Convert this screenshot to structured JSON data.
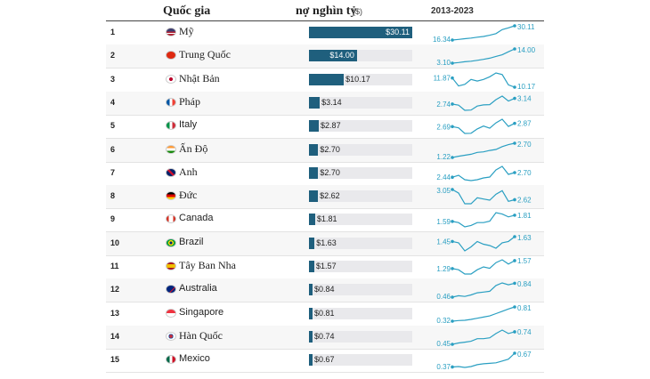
{
  "header": {
    "country_label": "Quốc gia",
    "debt_label": "nợ nghìn tỷ",
    "unit_label": "($)",
    "range_label": "2013-2023"
  },
  "chart_data": {
    "type": "bar",
    "max_value": 30.11,
    "rows": [
      {
        "rank": "1",
        "country": "Mỹ",
        "flag": "us",
        "value": 30.11,
        "label": "$30.11",
        "start": "16.34",
        "end": "30.11",
        "trend": [
          16.34,
          16.9,
          17.6,
          18.2,
          19.1,
          19.8,
          21.0,
          22.5,
          26.4,
          28.1,
          30.11
        ]
      },
      {
        "rank": "2",
        "country": "Trung Quốc",
        "flag": "cn",
        "value": 14.0,
        "label": "$14.00",
        "start": "3.10",
        "end": "14.00",
        "trend": [
          3.1,
          3.6,
          4.2,
          4.6,
          5.3,
          6.0,
          6.9,
          8.3,
          9.5,
          11.8,
          14.0
        ]
      },
      {
        "rank": "3",
        "country": "Nhật Bản",
        "flag": "jp",
        "value": 10.17,
        "label": "$10.17",
        "start": "11.87",
        "end": "10.17",
        "trend": [
          11.87,
          10.4,
          10.7,
          11.6,
          11.3,
          11.6,
          12.1,
          12.8,
          12.5,
          10.6,
          10.17
        ]
      },
      {
        "rank": "4",
        "country": "Pháp",
        "flag": "fr",
        "value": 3.14,
        "label": "$3.14",
        "start": "2.74",
        "end": "3.14",
        "trend": [
          2.74,
          2.66,
          2.3,
          2.32,
          2.6,
          2.68,
          2.7,
          3.05,
          3.3,
          2.95,
          3.14
        ]
      },
      {
        "rank": "5",
        "country": "Italy",
        "flag": "it",
        "value": 2.87,
        "label": "$2.87",
        "start": "2.69",
        "end": "2.87",
        "trend": [
          2.69,
          2.62,
          2.31,
          2.32,
          2.56,
          2.72,
          2.6,
          2.9,
          3.1,
          2.7,
          2.87
        ]
      },
      {
        "rank": "6",
        "country": "Ấn Độ",
        "flag": "in",
        "value": 2.7,
        "label": "$2.70",
        "start": "1.22",
        "end": "2.70",
        "trend": [
          1.22,
          1.35,
          1.45,
          1.55,
          1.75,
          1.8,
          1.95,
          2.05,
          2.35,
          2.55,
          2.7
        ]
      },
      {
        "rank": "7",
        "country": "Anh",
        "flag": "gb",
        "value": 2.7,
        "label": "$2.70",
        "start": "2.44",
        "end": "2.70",
        "trend": [
          2.44,
          2.55,
          2.3,
          2.25,
          2.3,
          2.4,
          2.45,
          2.85,
          3.05,
          2.6,
          2.7
        ]
      },
      {
        "rank": "8",
        "country": "Đức",
        "flag": "de",
        "value": 2.62,
        "label": "$2.62",
        "start": "3.05",
        "end": "2.62",
        "trend": [
          3.05,
          2.9,
          2.45,
          2.45,
          2.7,
          2.65,
          2.6,
          2.85,
          3.0,
          2.55,
          2.62
        ]
      },
      {
        "rank": "9",
        "country": "Canada",
        "flag": "ca",
        "value": 1.81,
        "label": "$1.81",
        "start": "1.59",
        "end": "1.81",
        "trend": [
          1.59,
          1.55,
          1.4,
          1.45,
          1.55,
          1.55,
          1.6,
          1.9,
          1.85,
          1.75,
          1.81
        ]
      },
      {
        "rank": "10",
        "country": "Brazil",
        "flag": "br",
        "value": 1.63,
        "label": "$1.63",
        "start": "1.45",
        "end": "1.63",
        "trend": [
          1.45,
          1.4,
          1.1,
          1.25,
          1.45,
          1.35,
          1.3,
          1.2,
          1.4,
          1.45,
          1.63
        ]
      },
      {
        "rank": "11",
        "country": "Tây Ban Nha",
        "flag": "es",
        "value": 1.57,
        "label": "$1.57",
        "start": "1.29",
        "end": "1.57",
        "trend": [
          1.29,
          1.25,
          1.1,
          1.1,
          1.25,
          1.35,
          1.3,
          1.5,
          1.6,
          1.45,
          1.57
        ]
      },
      {
        "rank": "12",
        "country": "Australia",
        "flag": "au",
        "value": 0.84,
        "label": "$0.84",
        "start": "0.46",
        "end": "0.84",
        "trend": [
          0.46,
          0.5,
          0.48,
          0.52,
          0.58,
          0.6,
          0.62,
          0.78,
          0.85,
          0.8,
          0.84
        ]
      },
      {
        "rank": "13",
        "country": "Singapore",
        "flag": "sg",
        "value": 0.81,
        "label": "$0.81",
        "start": "0.32",
        "end": "0.81",
        "trend": [
          0.32,
          0.34,
          0.35,
          0.38,
          0.42,
          0.46,
          0.5,
          0.58,
          0.66,
          0.74,
          0.81
        ]
      },
      {
        "rank": "14",
        "country": "Hàn Quốc",
        "flag": "kr",
        "value": 0.74,
        "label": "$0.74",
        "start": "0.45",
        "end": "0.74",
        "trend": [
          0.45,
          0.48,
          0.5,
          0.52,
          0.58,
          0.58,
          0.6,
          0.7,
          0.78,
          0.7,
          0.74
        ]
      },
      {
        "rank": "15",
        "country": "Mexico",
        "flag": "mx",
        "value": 0.67,
        "label": "$0.67",
        "start": "0.37",
        "end": "0.67",
        "trend": [
          0.37,
          0.38,
          0.36,
          0.38,
          0.42,
          0.44,
          0.45,
          0.46,
          0.5,
          0.54,
          0.67
        ]
      }
    ]
  },
  "colors": {
    "bar": "#1f5f7d",
    "spark": "#2a9fc2"
  }
}
